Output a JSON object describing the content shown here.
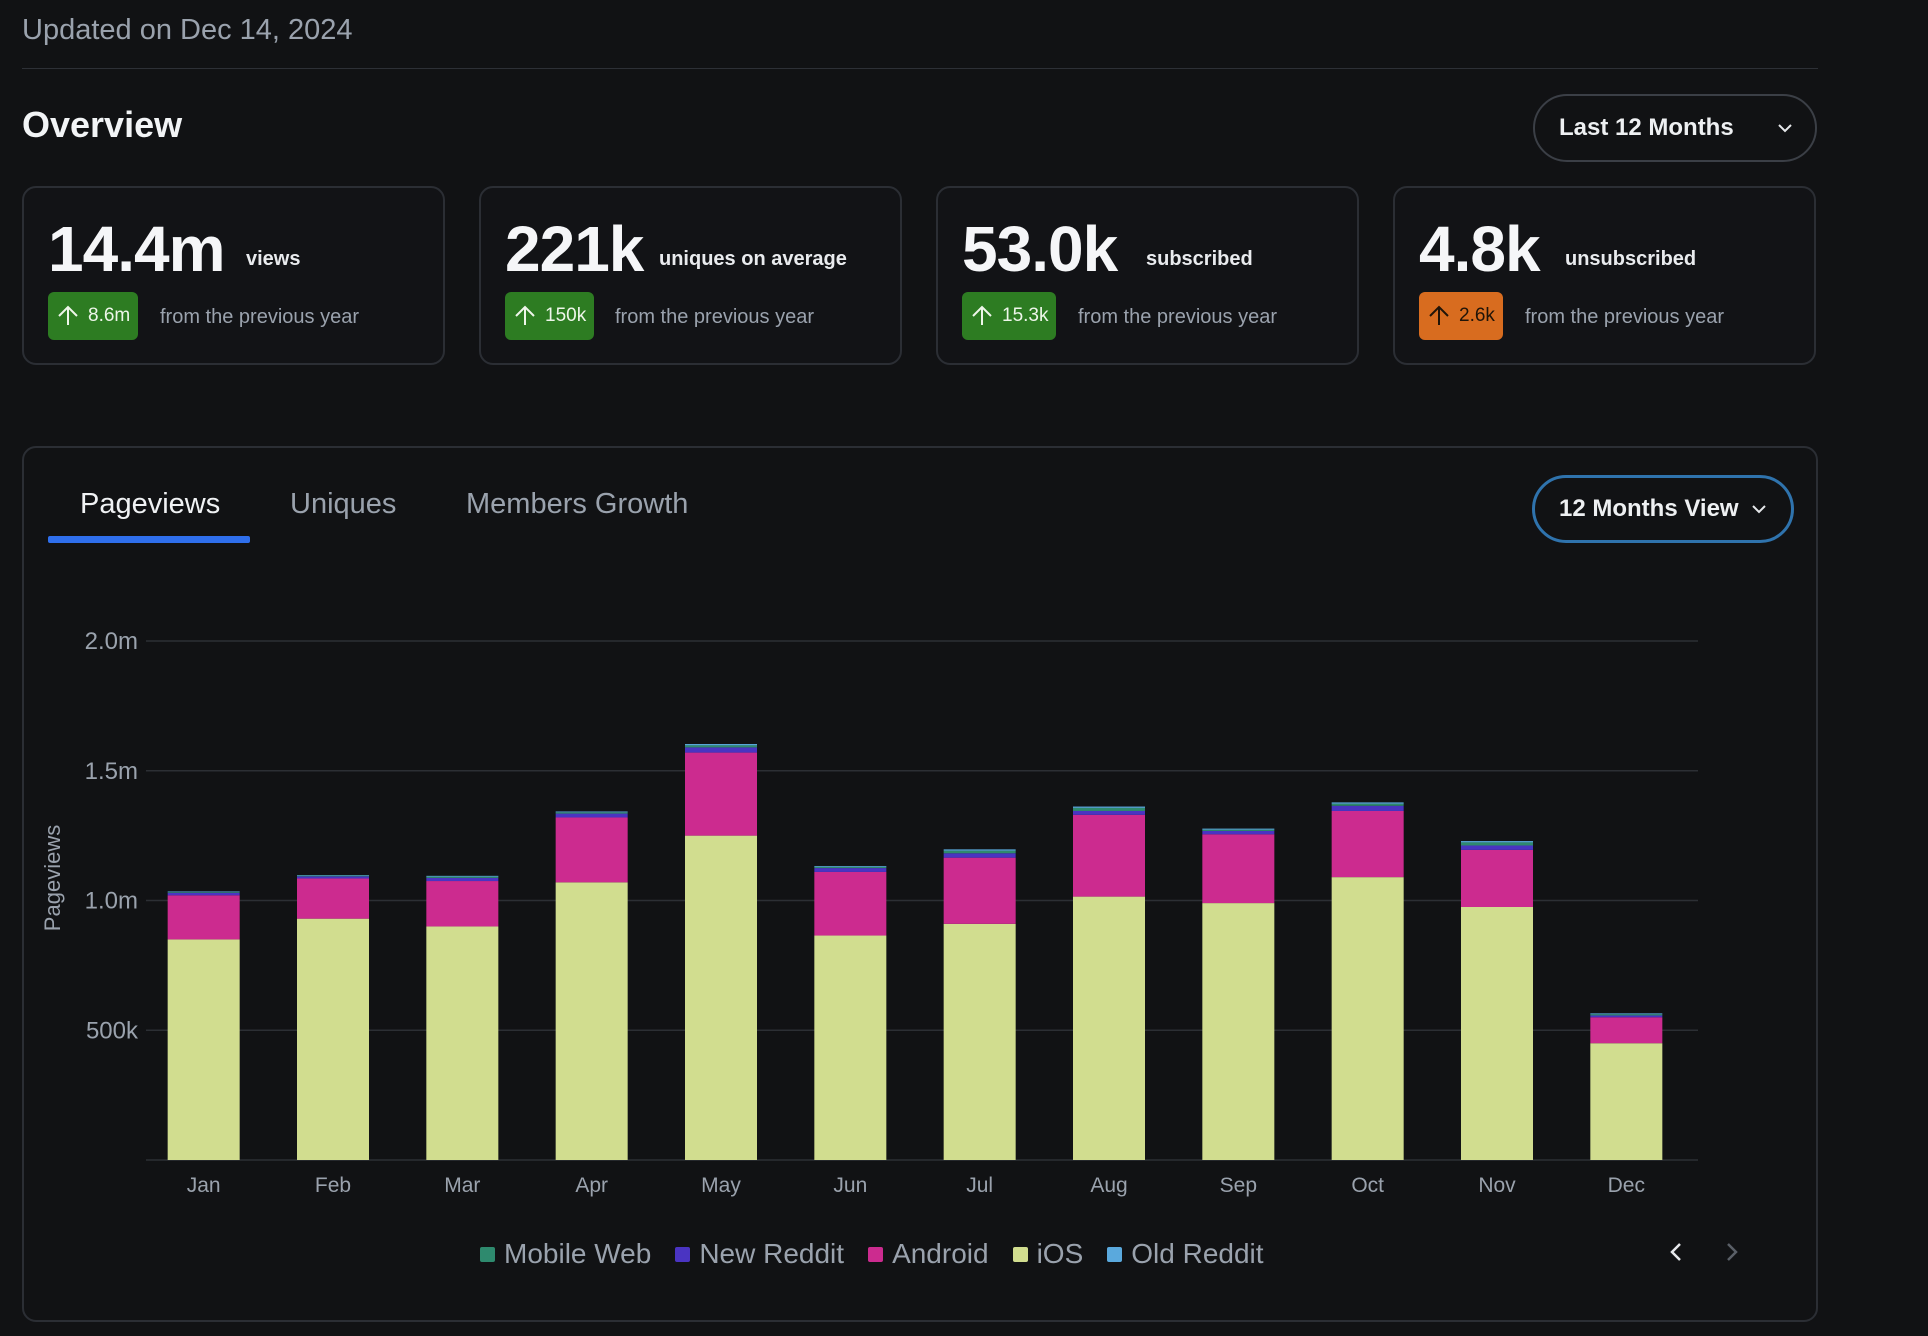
{
  "header": {
    "updated": "Updated on Dec 14, 2024",
    "overview_title": "Overview",
    "range_select": "Last 12 Months"
  },
  "cards": [
    {
      "value": "14.4m",
      "unit": "views",
      "delta": "8.6m",
      "delta_color": "#2d7c22",
      "from": "from the previous year"
    },
    {
      "value": "221k",
      "unit": "uniques on average",
      "delta": "150k",
      "delta_color": "#2d7c22",
      "from": "from the previous year"
    },
    {
      "value": "53.0k",
      "unit": "subscribed",
      "delta": "15.3k",
      "delta_color": "#2d7c22",
      "from": "from the previous year"
    },
    {
      "value": "4.8k",
      "unit": "unsubscribed",
      "delta": "2.6k",
      "delta_color": "#d86c1f",
      "from": "from the previous year"
    }
  ],
  "tabs": [
    {
      "label": "Pageviews",
      "active": true
    },
    {
      "label": "Uniques",
      "active": false
    },
    {
      "label": "Members Growth",
      "active": false
    }
  ],
  "view_select": "12 Months View",
  "icons": {
    "up": "arrow-up-icon",
    "chevron": "chevron-down-icon",
    "prev": "chevron-left-icon",
    "next": "chevron-right-icon"
  },
  "chart_data": {
    "type": "bar",
    "stacked": true,
    "ylabel": "Pageviews",
    "ylim": [
      0,
      2000000
    ],
    "yticks": [
      500000,
      1000000,
      1500000,
      2000000
    ],
    "ytick_labels": [
      "500k",
      "1.0m",
      "1.5m",
      "2.0m"
    ],
    "grid": true,
    "categories": [
      "Jan",
      "Feb",
      "Mar",
      "Apr",
      "May",
      "Jun",
      "Jul",
      "Aug",
      "Sep",
      "Oct",
      "Nov",
      "Dec"
    ],
    "series": [
      {
        "name": "iOS",
        "color": "#d1dd8f",
        "values": [
          850000,
          930000,
          900000,
          1070000,
          1250000,
          865000,
          910000,
          1015000,
          990000,
          1090000,
          975000,
          450000
        ]
      },
      {
        "name": "Android",
        "color": "#cc2b8f",
        "values": [
          170000,
          155000,
          175000,
          250000,
          320000,
          245000,
          255000,
          315000,
          265000,
          255000,
          220000,
          100000
        ]
      },
      {
        "name": "New Reddit",
        "color": "#4a34c2",
        "values": [
          10000,
          8000,
          12000,
          15000,
          20000,
          15000,
          17000,
          15000,
          13000,
          20000,
          17000,
          7000
        ]
      },
      {
        "name": "Mobile Web",
        "color": "#2e8a6e",
        "values": [
          3000,
          3000,
          5000,
          5000,
          8000,
          5000,
          10000,
          12000,
          5000,
          8000,
          12000,
          5000
        ]
      },
      {
        "name": "Old Reddit",
        "color": "#5aa9dd",
        "values": [
          2000,
          2000,
          3000,
          3000,
          5000,
          3000,
          5000,
          5000,
          4000,
          5000,
          5000,
          3000
        ]
      }
    ],
    "legend": {
      "placement": "bottom-center",
      "order": [
        "Mobile Web",
        "New Reddit",
        "Android",
        "iOS",
        "Old Reddit"
      ]
    }
  }
}
